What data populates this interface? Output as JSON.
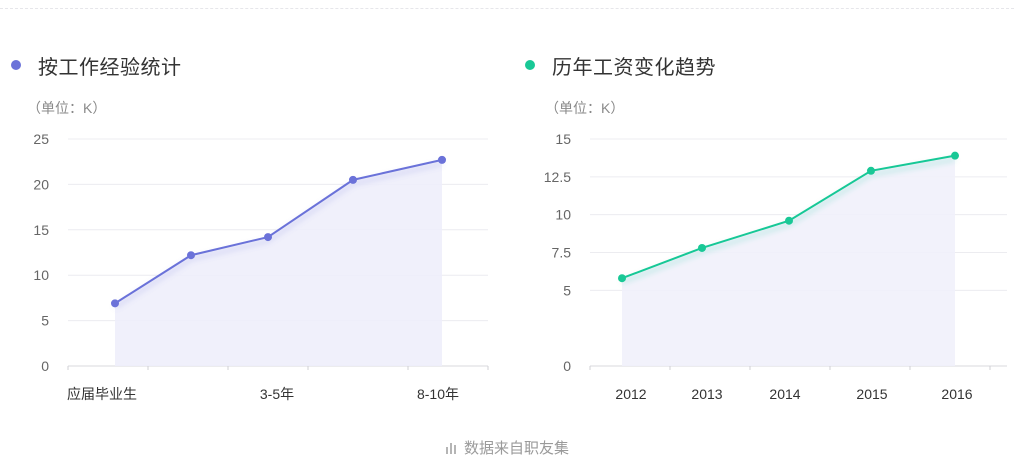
{
  "source_text": "数据来自职友集",
  "source_icon": "bar-chart-icon",
  "charts": [
    {
      "id": "experience",
      "title": "按工作经验统计",
      "unit": "（单位：K）",
      "color": "#6b72d9",
      "fill_color": "#eeeefb",
      "chart_data": {
        "type": "line",
        "title": "按工作经验统计",
        "ylabel": "（单位：K）",
        "xlabel": "",
        "x_tick_labels": [
          "应届毕业生",
          "",
          "3-5年",
          "",
          "8-10年"
        ],
        "y_ticks": [
          0,
          5,
          10,
          15,
          20,
          25
        ],
        "y_tick_labels": [
          "0",
          "5",
          "10",
          "15",
          "20",
          "25"
        ],
        "ylim": [
          0,
          25
        ],
        "grid": true,
        "series": [
          {
            "values": [
              6.9,
              12.2,
              14.2,
              20.5,
              22.7
            ]
          }
        ]
      }
    },
    {
      "id": "yearly",
      "title": "历年工资变化趋势",
      "unit": "（单位：K）",
      "color": "#19c896",
      "fill_color": "#f1f1fb",
      "chart_data": {
        "type": "line",
        "title": "历年工资变化趋势",
        "ylabel": "（单位：K）",
        "xlabel": "",
        "x_tick_labels": [
          "2012",
          "2013",
          "2014",
          "2015",
          "2016"
        ],
        "y_ticks": [
          0,
          5,
          7.5,
          10,
          12.5,
          15
        ],
        "y_tick_labels": [
          "0",
          "5",
          "7.5",
          "10",
          "12.5",
          "15"
        ],
        "ylim": [
          0,
          15
        ],
        "grid": true,
        "series": [
          {
            "values": [
              5.8,
              7.8,
              9.6,
              12.9,
              13.9
            ]
          }
        ]
      }
    }
  ]
}
